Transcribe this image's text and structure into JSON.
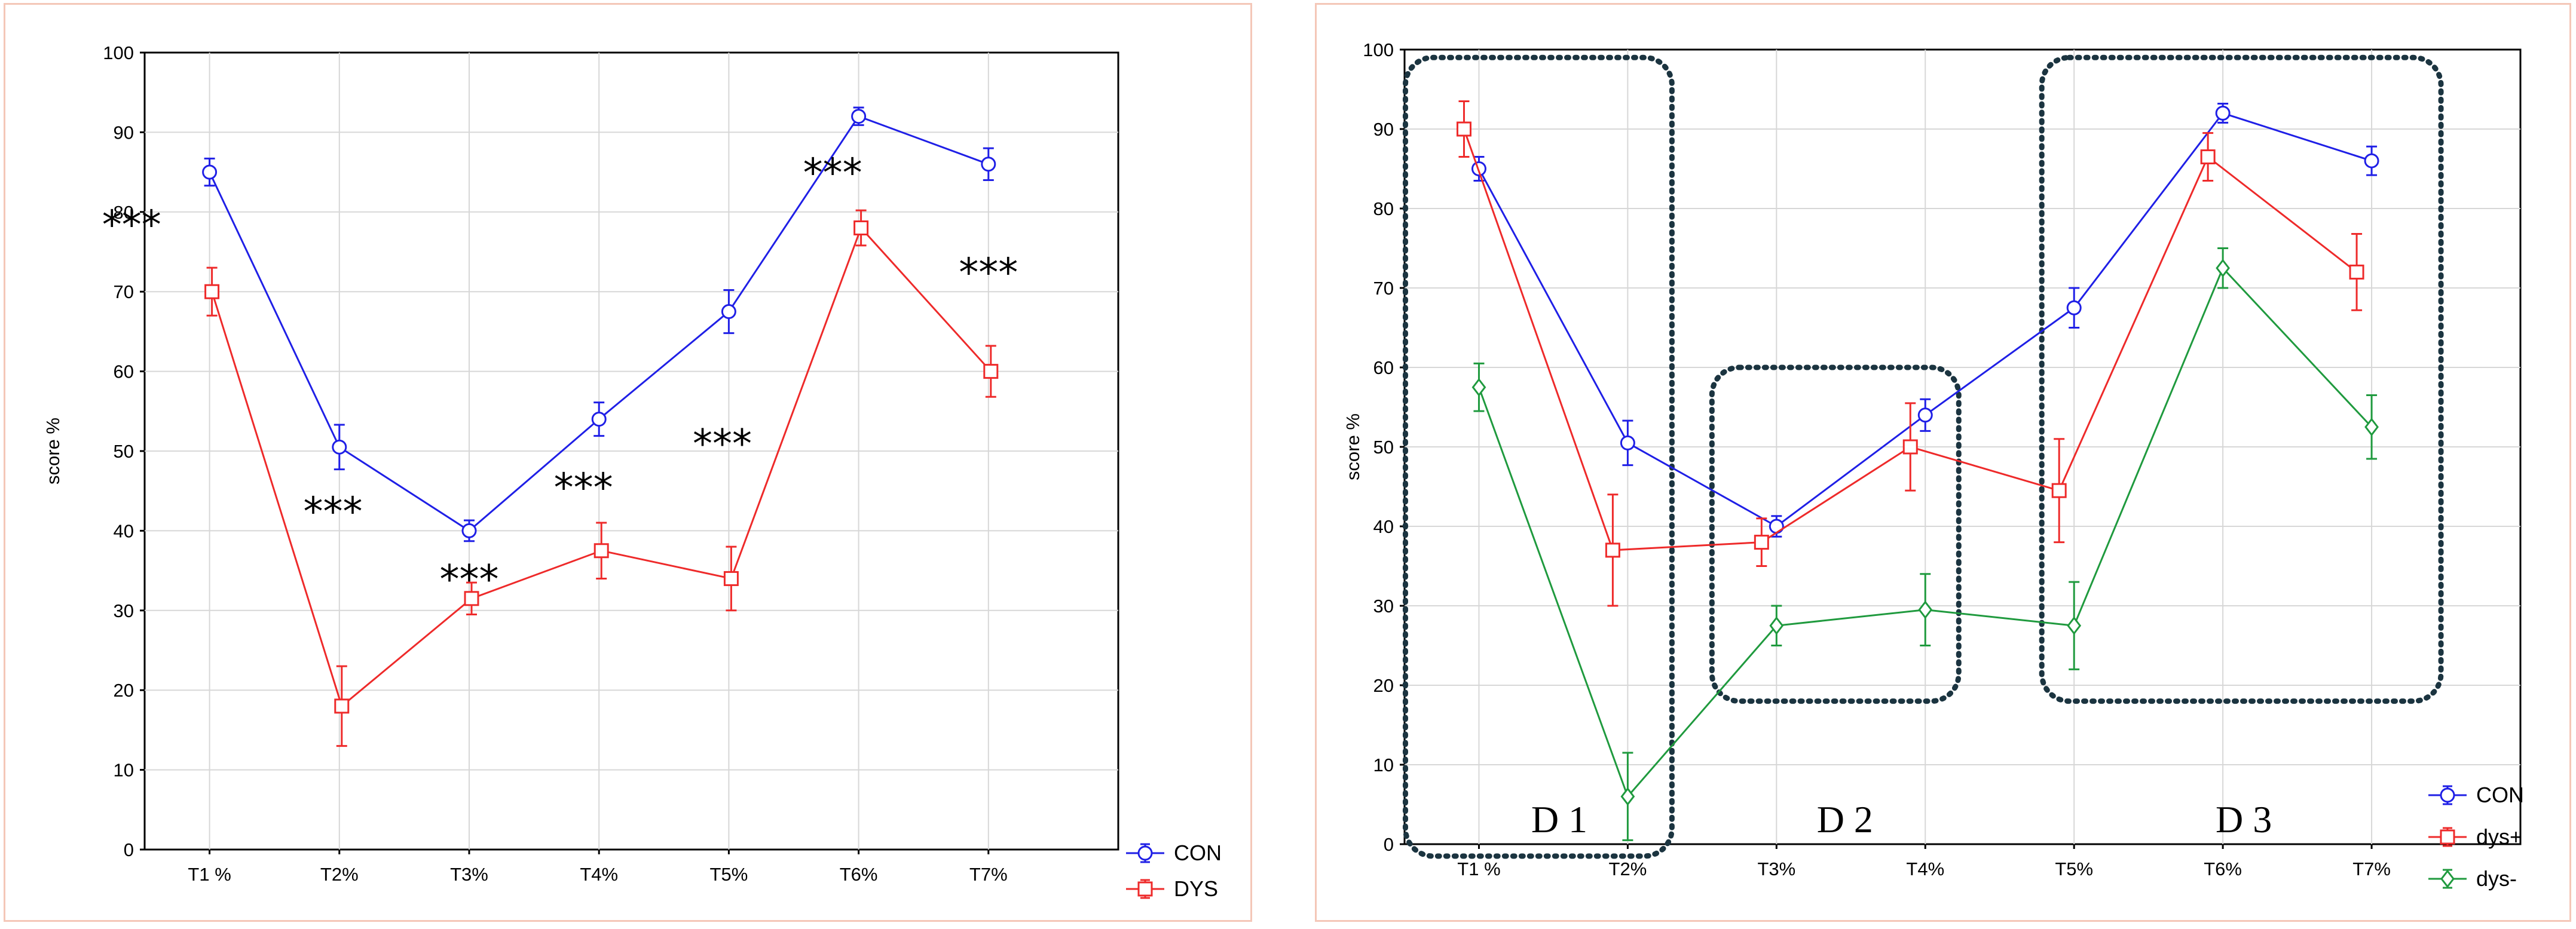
{
  "chart_data": [
    {
      "type": "line",
      "categories": [
        "T1 %",
        "T2%",
        "T3%",
        "T4%",
        "T5%",
        "T6%",
        "T7%"
      ],
      "ylabel": "score %",
      "ylim": [
        0,
        100
      ],
      "yticks": [
        "0",
        "10",
        "20",
        "30",
        "40",
        "50",
        "60",
        "70",
        "80",
        "90",
        "100"
      ],
      "grid": true,
      "legend_position": "bottom-right",
      "series": [
        {
          "name": "CON",
          "color": "#1f1fe6",
          "marker": "circle",
          "values": [
            85,
            50.5,
            40,
            54,
            67.5,
            92,
            86
          ],
          "errors": [
            1.7,
            2.8,
            1.3,
            2.1,
            2.7,
            1.1,
            2.0
          ]
        },
        {
          "name": "DYS",
          "color": "#ee2a2a",
          "marker": "square",
          "values": [
            70,
            18,
            31.5,
            37.5,
            34,
            78,
            60
          ],
          "errors": [
            3.0,
            5.0,
            2.0,
            3.5,
            4.0,
            2.2,
            3.2
          ]
        }
      ],
      "annotations": [
        {
          "text": "***",
          "x": 0,
          "y": 78.5,
          "offset": -0.6
        },
        {
          "text": "***",
          "x": 1,
          "y": 42.5,
          "offset": -0.05
        },
        {
          "text": "***",
          "x": 2,
          "y": 34,
          "offset": 0
        },
        {
          "text": "***",
          "x": 3,
          "y": 45.5,
          "offset": -0.12
        },
        {
          "text": "***",
          "x": 4,
          "y": 51,
          "offset": -0.05
        },
        {
          "text": "***",
          "x": 5,
          "y": 85,
          "offset": -0.2
        },
        {
          "text": "***",
          "x": 6,
          "y": 72.5,
          "offset": 0
        }
      ]
    },
    {
      "type": "line",
      "categories": [
        "T1 %",
        "T2%",
        "T3%",
        "T4%",
        "T5%",
        "T6%",
        "T7%"
      ],
      "ylabel": "score %",
      "ylim": [
        0,
        100
      ],
      "yticks": [
        "0",
        "10",
        "20",
        "30",
        "40",
        "50",
        "60",
        "70",
        "80",
        "90",
        "100"
      ],
      "grid": true,
      "legend_position": "bottom-right",
      "series": [
        {
          "name": "CON",
          "color": "#1f1fe6",
          "marker": "circle",
          "values": [
            85,
            50.5,
            40,
            54,
            67.5,
            92,
            86
          ],
          "errors": [
            1.5,
            2.8,
            1.3,
            2.0,
            2.5,
            1.2,
            1.8
          ]
        },
        {
          "name": "dys+",
          "color": "#ee2a2a",
          "marker": "square",
          "values": [
            90,
            37,
            38,
            50,
            44.5,
            86.5,
            72
          ],
          "errors": [
            3.5,
            7.0,
            3.0,
            5.5,
            6.5,
            3.0,
            4.8
          ]
        },
        {
          "name": "dys-",
          "color": "#1f9a3e",
          "marker": "diamond",
          "values": [
            57.5,
            6,
            27.5,
            29.5,
            27.5,
            72.5,
            52.5
          ],
          "errors": [
            3.0,
            5.5,
            2.5,
            4.5,
            5.5,
            2.5,
            4.0
          ]
        }
      ],
      "regions": [
        {
          "label": "D 1",
          "from": 0,
          "to": 1
        },
        {
          "label": "D 2",
          "from": 2,
          "to": 3
        },
        {
          "label": "D 3",
          "from": 4,
          "to": 6
        }
      ]
    }
  ]
}
